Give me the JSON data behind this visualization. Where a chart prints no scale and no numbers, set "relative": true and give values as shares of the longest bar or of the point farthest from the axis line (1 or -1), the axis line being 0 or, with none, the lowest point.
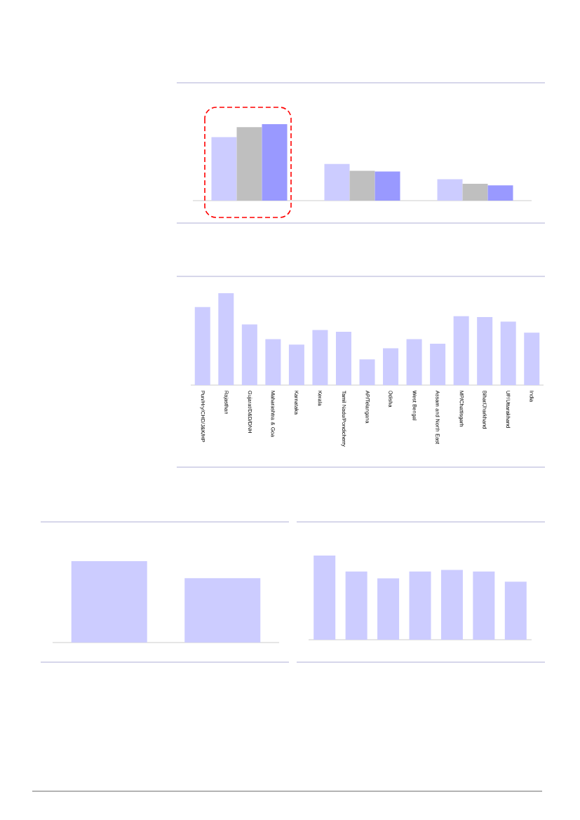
{
  "chart_data": [
    {
      "type": "bar",
      "relative": true,
      "categories": [
        null,
        null,
        null
      ],
      "series": [
        {
          "color": "#ccccff",
          "values": [
            0.83,
            0.48,
            0.28
          ]
        },
        {
          "color": "#bfbfbf",
          "values": [
            0.96,
            0.39,
            0.22
          ]
        },
        {
          "color": "#9999ff",
          "values": [
            1,
            0.38,
            0.2
          ]
        }
      ]
    },
    {
      "type": "bar",
      "relative": true,
      "categories": [
        "Pun/Hry/CHD/J&K/HP",
        "Rajasthan",
        "Gujarat/D&D/DNH",
        "Maharashtra & Goa",
        "Karnataka",
        "Kerala",
        "Tamil Nadu/Pondicherry",
        "AP/Telangana",
        "Odisha",
        "West Bengal",
        "Assam and North East",
        "MP/Chattisgarh",
        "Bihar/Jharkhand",
        "UP/Uttarakhand",
        "India"
      ],
      "series": [
        {
          "color": "#ccccff",
          "values": [
            0.85,
            1,
            0.66,
            0.5,
            0.44,
            0.6,
            0.58,
            0.28,
            0.4,
            0.5,
            0.45,
            0.75,
            0.74,
            0.69,
            0.57
          ]
        }
      ]
    },
    {
      "type": "bar",
      "relative": true,
      "categories": [
        null,
        null
      ],
      "series": [
        {
          "color": "#ccccff",
          "values": [
            1,
            0.79
          ]
        }
      ]
    },
    {
      "type": "bar",
      "relative": true,
      "categories": [
        null,
        null,
        null,
        null,
        null,
        null,
        null
      ],
      "series": [
        {
          "color": "#ccccff",
          "values": [
            1,
            0.81,
            0.73,
            0.81,
            0.83,
            0.81,
            0.69
          ]
        }
      ]
    }
  ]
}
